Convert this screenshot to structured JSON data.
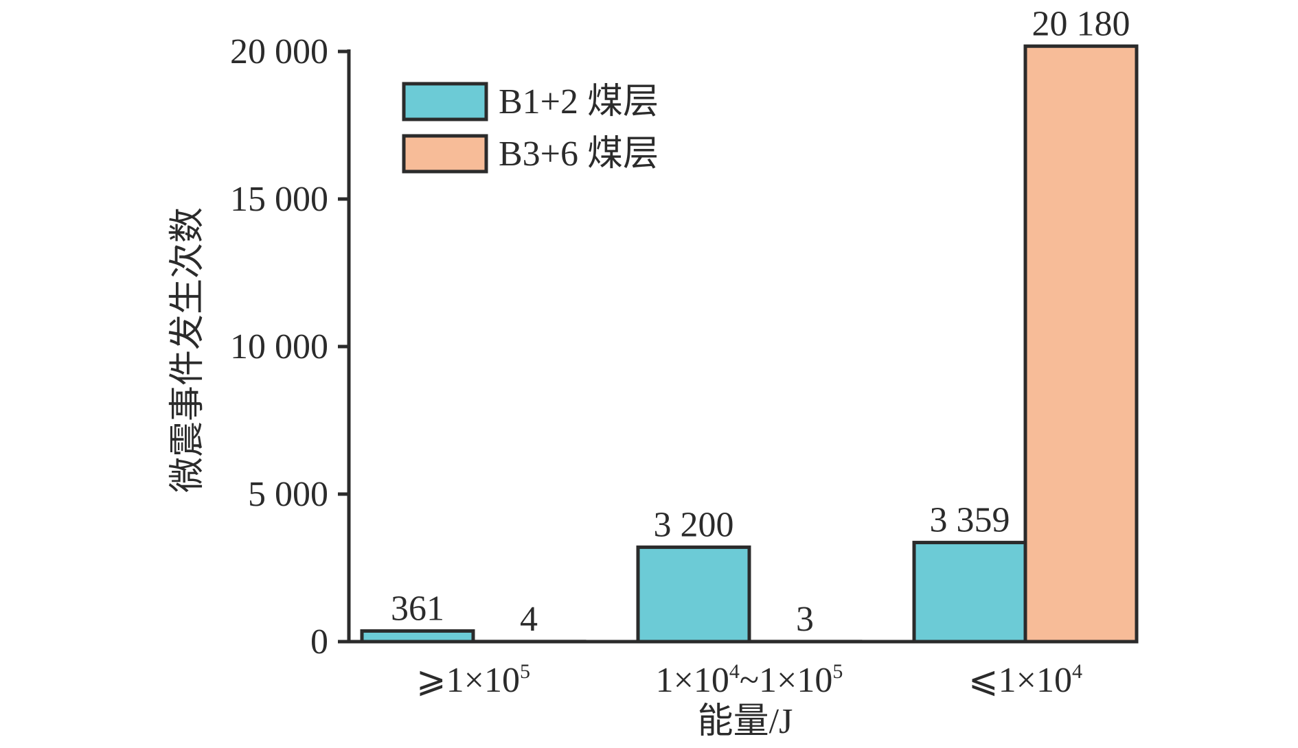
{
  "chart_data": {
    "type": "bar",
    "title": "",
    "xlabel": "能量/J",
    "ylabel": "微震事件发生次数",
    "categories": [
      {
        "base": "⩾1×10",
        "sup": "5"
      },
      {
        "base": "1×10",
        "sup": "4",
        "mid": "~1×10",
        "sup2": "5"
      },
      {
        "base": "⩽1×10",
        "sup": "4"
      }
    ],
    "series": [
      {
        "name": "B1+2 煤层",
        "color": "#6ccbd6",
        "values": [
          361,
          3200,
          3359
        ]
      },
      {
        "name": "B3+6 煤层",
        "color": "#f7bc98",
        "values": [
          4,
          3,
          20180
        ]
      }
    ],
    "data_labels": [
      [
        "361",
        "3 200",
        "3 359"
      ],
      [
        "4",
        "3",
        "20 180"
      ]
    ],
    "ylim": [
      0,
      20000
    ],
    "yticks": [
      0,
      5000,
      10000,
      15000,
      20000
    ],
    "ytick_labels": [
      "0",
      "5 000",
      "10 000",
      "15 000",
      "20 000"
    ],
    "legend_position": "top-left",
    "grid": false
  }
}
